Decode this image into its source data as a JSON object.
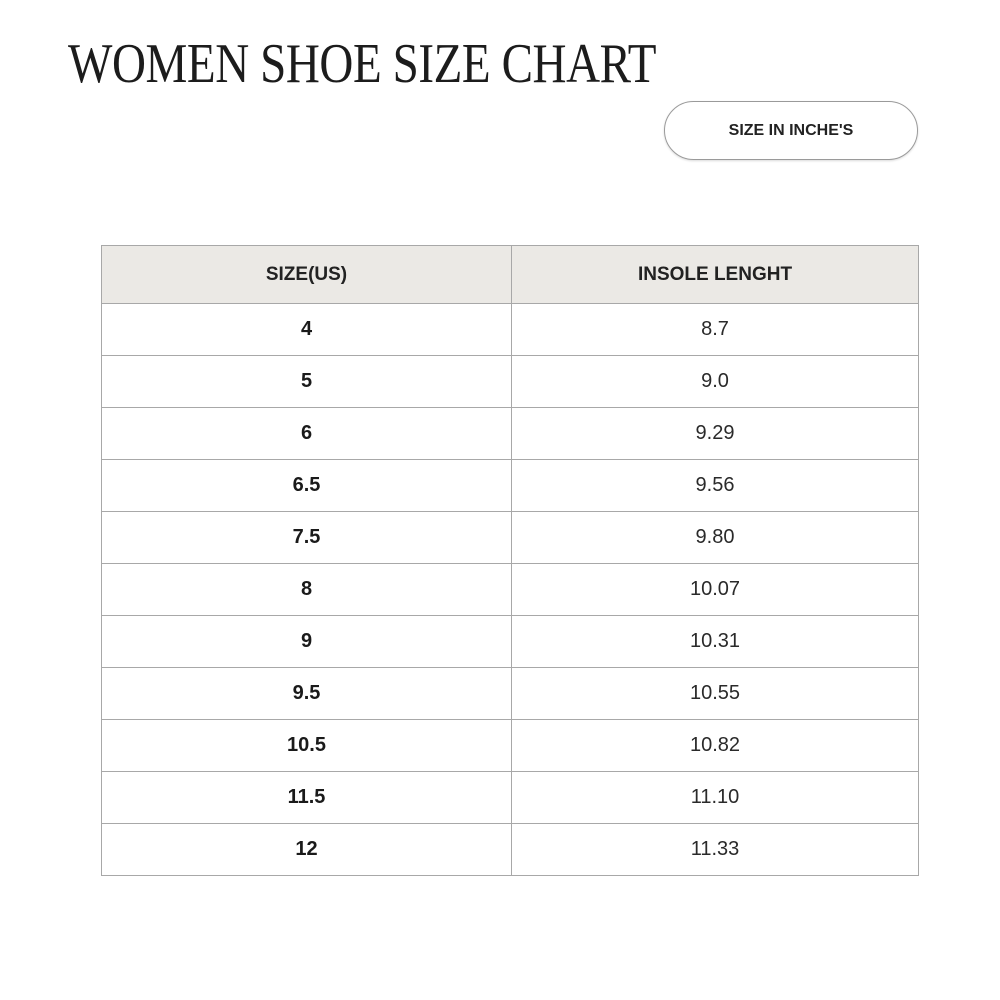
{
  "title": "WOMEN SHOE SIZE CHART",
  "unit_label": "SIZE IN INCHE'S",
  "table": {
    "headers": [
      "SIZE(US)",
      "INSOLE LENGHT"
    ],
    "rows": [
      {
        "size": "4",
        "length": "8.7"
      },
      {
        "size": "5",
        "length": "9.0"
      },
      {
        "size": "6",
        "length": "9.29"
      },
      {
        "size": "6.5",
        "length": "9.56"
      },
      {
        "size": "7.5",
        "length": "9.80"
      },
      {
        "size": "8",
        "length": "10.07"
      },
      {
        "size": "9",
        "length": "10.31"
      },
      {
        "size": "9.5",
        "length": "10.55"
      },
      {
        "size": "10.5",
        "length": "10.82"
      },
      {
        "size": "11.5",
        "length": "11.10"
      },
      {
        "size": "12",
        "length": "11.33"
      }
    ]
  },
  "colors": {
    "header_bg": "#ebe9e5",
    "border": "#a8a8a8"
  }
}
